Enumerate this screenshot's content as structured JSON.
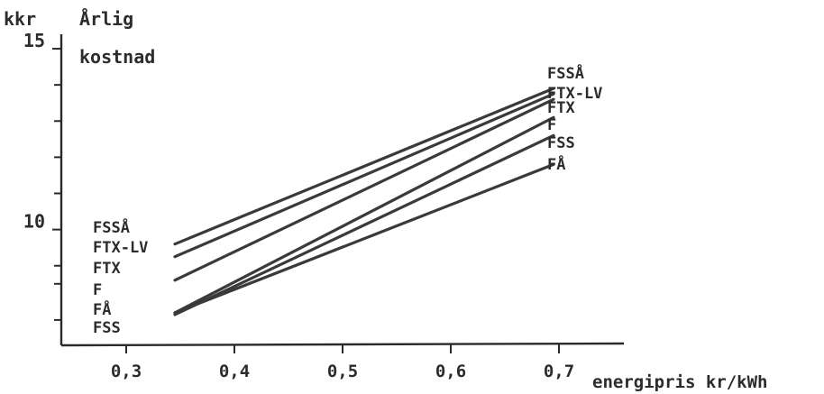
{
  "chart_data": {
    "type": "line",
    "y_unit": "kkr",
    "title_line1": "Årlig",
    "title_line2": "kostnad",
    "xlabel": "energipris kr/kWh",
    "x_ticks": [
      0.3,
      0.4,
      0.5,
      0.6,
      0.7
    ],
    "x_tick_labels": [
      "0,3",
      "0,4",
      "0,5",
      "0,6",
      "0,7"
    ],
    "y_labeled_ticks": [
      10,
      15
    ],
    "y_labeled_tick_labels": [
      "10",
      "15"
    ],
    "y_minor_ticks": [
      7.5,
      8.5,
      9,
      11,
      12,
      13,
      14
    ],
    "xlim": [
      0.24,
      0.76
    ],
    "ylim": [
      6.8,
      15.3
    ],
    "series": [
      {
        "name": "FSSÅ",
        "x": [
          0.345,
          0.695
        ],
        "y": [
          9.6,
          13.9
        ]
      },
      {
        "name": "FTX-LV",
        "x": [
          0.345,
          0.695
        ],
        "y": [
          9.25,
          13.75
        ]
      },
      {
        "name": "FTX",
        "x": [
          0.345,
          0.695
        ],
        "y": [
          8.6,
          13.6
        ]
      },
      {
        "name": "F",
        "x": [
          0.345,
          0.695
        ],
        "y": [
          7.7,
          13.1
        ]
      },
      {
        "name": "FSS",
        "x": [
          0.345,
          0.695
        ],
        "y": [
          7.65,
          12.6
        ]
      },
      {
        "name": "FÅ",
        "x": [
          0.345,
          0.695
        ],
        "y": [
          7.7,
          11.8
        ]
      }
    ],
    "left_label_order": [
      "FSSÅ",
      "FTX-LV",
      "FTX",
      "F",
      "FÅ",
      "FSS"
    ],
    "right_label_order": [
      "FSSÅ",
      "FTX-LV",
      "FTX",
      "F",
      "FSS",
      "FÅ"
    ],
    "grid": false,
    "legend": "line labels at left and right ends"
  }
}
